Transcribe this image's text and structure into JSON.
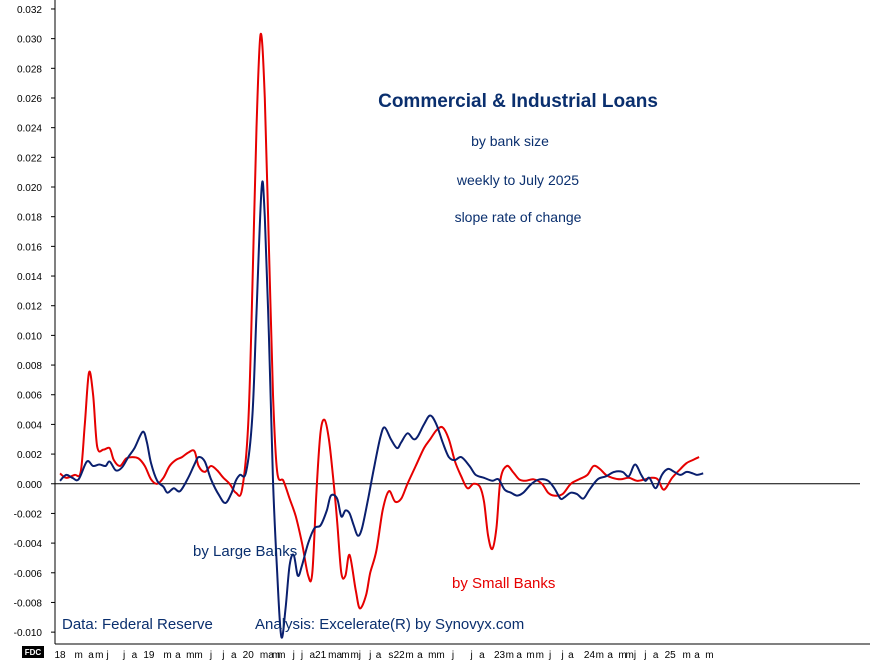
{
  "chart_data": {
    "type": "line",
    "title": "Commercial & Industrial Loans",
    "subtitle_lines": [
      "by bank size",
      "weekly to July 2025",
      "slope rate of change"
    ],
    "annotations": {
      "large_banks": "by Large Banks",
      "small_banks": "by Small Banks",
      "source": "Data:  Federal Reserve",
      "analysis": "Analysis:  Excelerate(R) by Synovyx.com",
      "badge": "FDC"
    },
    "ylim": [
      -0.0108,
      0.0322
    ],
    "y_ticks": [
      0.032,
      0.03,
      0.028,
      0.026,
      0.024,
      0.022,
      0.02,
      0.018,
      0.016,
      0.014,
      0.012,
      0.01,
      0.008,
      0.006,
      0.004,
      0.002,
      0.0,
      -0.002,
      -0.004,
      -0.006,
      -0.008,
      -0.01
    ],
    "y_tick_labels": [
      "0.032",
      "0.030",
      "0.028",
      "0.026",
      "0.024",
      "0.022",
      "0.020",
      "0.018",
      "0.016",
      "0.014",
      "0.012",
      "0.010",
      "0.008",
      "0.006",
      "0.004",
      "0.002",
      "0.000",
      "-0.002",
      "-0.004",
      "-0.006",
      "-0.008",
      "-0.010"
    ],
    "xlim": [
      2018.0,
      2025.62
    ],
    "x_tick_labels": [
      {
        "x": 2018.0,
        "label": "18"
      },
      {
        "x": 2018.18,
        "label": "m"
      },
      {
        "x": 2018.3,
        "label": "a"
      },
      {
        "x": 2018.38,
        "label": "m"
      },
      {
        "x": 2018.46,
        "label": "j"
      },
      {
        "x": 2018.62,
        "label": "j"
      },
      {
        "x": 2018.72,
        "label": "a"
      },
      {
        "x": 2018.86,
        "label": "19"
      },
      {
        "x": 2019.04,
        "label": "m"
      },
      {
        "x": 2019.14,
        "label": "a"
      },
      {
        "x": 2019.26,
        "label": "m"
      },
      {
        "x": 2019.34,
        "label": "m"
      },
      {
        "x": 2019.46,
        "label": "j"
      },
      {
        "x": 2019.58,
        "label": "j"
      },
      {
        "x": 2019.68,
        "label": "a"
      },
      {
        "x": 2019.82,
        "label": "20"
      },
      {
        "x": 2020.0,
        "label": "ma"
      },
      {
        "x": 2020.09,
        "label": "m"
      },
      {
        "x": 2020.14,
        "label": "m"
      },
      {
        "x": 2020.26,
        "label": "j"
      },
      {
        "x": 2020.34,
        "label": "j"
      },
      {
        "x": 2020.44,
        "label": "a"
      },
      {
        "x": 2020.52,
        "label": "21"
      },
      {
        "x": 2020.66,
        "label": "ma"
      },
      {
        "x": 2020.76,
        "label": "m"
      },
      {
        "x": 2020.86,
        "label": "mj"
      },
      {
        "x": 2021.0,
        "label": "j"
      },
      {
        "x": 2021.08,
        "label": "a"
      },
      {
        "x": 2021.2,
        "label": "s"
      },
      {
        "x": 2021.28,
        "label": "22"
      },
      {
        "x": 2021.38,
        "label": "m"
      },
      {
        "x": 2021.48,
        "label": "a"
      },
      {
        "x": 2021.6,
        "label": "m"
      },
      {
        "x": 2021.68,
        "label": "m"
      },
      {
        "x": 2021.8,
        "label": "j"
      },
      {
        "x": 2021.98,
        "label": "j"
      },
      {
        "x": 2022.08,
        "label": "a"
      },
      {
        "x": 2022.25,
        "label": "23"
      },
      {
        "x": 2022.35,
        "label": "m"
      },
      {
        "x": 2022.44,
        "label": "a"
      },
      {
        "x": 2022.55,
        "label": "m"
      },
      {
        "x": 2022.64,
        "label": "m"
      },
      {
        "x": 2022.74,
        "label": "j"
      },
      {
        "x": 2022.86,
        "label": "j"
      },
      {
        "x": 2022.94,
        "label": "a"
      },
      {
        "x": 2023.12,
        "label": "24"
      },
      {
        "x": 2023.22,
        "label": "m"
      },
      {
        "x": 2023.32,
        "label": "a"
      },
      {
        "x": 2023.44,
        "label": "m"
      },
      {
        "x": 2023.52,
        "label": "mj"
      },
      {
        "x": 2023.66,
        "label": "j"
      },
      {
        "x": 2023.76,
        "label": "a"
      },
      {
        "x": 2023.9,
        "label": "25"
      },
      {
        "x": 2024.06,
        "label": "m"
      },
      {
        "x": 2024.16,
        "label": "a"
      },
      {
        "x": 2024.28,
        "label": "m"
      }
    ],
    "series": [
      {
        "name": "by Large Banks",
        "color": "#0a1f6e",
        "points": [
          [
            2018.0,
            0.0002
          ],
          [
            2018.06,
            0.0006
          ],
          [
            2018.12,
            0.0004
          ],
          [
            2018.18,
            0.0003
          ],
          [
            2018.26,
            0.0015
          ],
          [
            2018.32,
            0.0012
          ],
          [
            2018.38,
            0.0013
          ],
          [
            2018.44,
            0.0012
          ],
          [
            2018.48,
            0.0015
          ],
          [
            2018.54,
            0.0009
          ],
          [
            2018.6,
            0.0011
          ],
          [
            2018.66,
            0.0018
          ],
          [
            2018.72,
            0.0024
          ],
          [
            2018.8,
            0.0035
          ],
          [
            2018.84,
            0.0028
          ],
          [
            2018.88,
            0.0014
          ],
          [
            2018.94,
            0.0002
          ],
          [
            2019.0,
            -0.0002
          ],
          [
            2019.04,
            -0.0006
          ],
          [
            2019.1,
            -0.0003
          ],
          [
            2019.16,
            -0.0005
          ],
          [
            2019.24,
            0.0004
          ],
          [
            2019.3,
            0.0013
          ],
          [
            2019.34,
            0.0018
          ],
          [
            2019.4,
            0.0015
          ],
          [
            2019.46,
            0.0003
          ],
          [
            2019.54,
            -0.0008
          ],
          [
            2019.6,
            -0.0013
          ],
          [
            2019.66,
            -0.0006
          ],
          [
            2019.7,
            0.0002
          ],
          [
            2019.74,
            0.0006
          ],
          [
            2019.8,
            0.0008
          ],
          [
            2019.86,
            0.0045
          ],
          [
            2019.9,
            0.0115
          ],
          [
            2019.95,
            0.02
          ],
          [
            2019.98,
            0.018
          ],
          [
            2020.02,
            0.01
          ],
          [
            2020.06,
            0.0002
          ],
          [
            2020.1,
            -0.006
          ],
          [
            2020.14,
            -0.0103
          ],
          [
            2020.18,
            -0.0085
          ],
          [
            2020.22,
            -0.0055
          ],
          [
            2020.26,
            -0.0048
          ],
          [
            2020.3,
            -0.0062
          ],
          [
            2020.34,
            -0.0055
          ],
          [
            2020.4,
            -0.004
          ],
          [
            2020.46,
            -0.003
          ],
          [
            2020.52,
            -0.0028
          ],
          [
            2020.58,
            -0.0018
          ],
          [
            2020.62,
            -0.0008
          ],
          [
            2020.68,
            -0.001
          ],
          [
            2020.72,
            -0.0022
          ],
          [
            2020.76,
            -0.0018
          ],
          [
            2020.8,
            -0.002
          ],
          [
            2020.84,
            -0.0028
          ],
          [
            2020.88,
            -0.0035
          ],
          [
            2020.92,
            -0.003
          ],
          [
            2020.98,
            -0.001
          ],
          [
            2021.04,
            0.0012
          ],
          [
            2021.1,
            0.0032
          ],
          [
            2021.14,
            0.0038
          ],
          [
            2021.2,
            0.003
          ],
          [
            2021.26,
            0.0024
          ],
          [
            2021.3,
            0.0028
          ],
          [
            2021.36,
            0.0034
          ],
          [
            2021.42,
            0.003
          ],
          [
            2021.46,
            0.0032
          ],
          [
            2021.52,
            0.004
          ],
          [
            2021.58,
            0.0046
          ],
          [
            2021.64,
            0.004
          ],
          [
            2021.7,
            0.0028
          ],
          [
            2021.76,
            0.0018
          ],
          [
            2021.82,
            0.0016
          ],
          [
            2021.88,
            0.0018
          ],
          [
            2021.96,
            0.0012
          ],
          [
            2022.02,
            0.0006
          ],
          [
            2022.1,
            0.0004
          ],
          [
            2022.18,
            0.0002
          ],
          [
            2022.24,
            0.0003
          ],
          [
            2022.3,
            -0.0004
          ],
          [
            2022.36,
            -0.0006
          ],
          [
            2022.42,
            -0.0008
          ],
          [
            2022.48,
            -0.0006
          ],
          [
            2022.56,
            0.0
          ],
          [
            2022.64,
            0.0003
          ],
          [
            2022.72,
            0.0002
          ],
          [
            2022.78,
            -0.0003
          ],
          [
            2022.84,
            -0.001
          ],
          [
            2022.88,
            -0.0009
          ],
          [
            2022.94,
            -0.0006
          ],
          [
            2023.0,
            -0.0007
          ],
          [
            2023.06,
            -0.001
          ],
          [
            2023.12,
            -0.0004
          ],
          [
            2023.2,
            0.0003
          ],
          [
            2023.28,
            0.0005
          ],
          [
            2023.36,
            0.0008
          ],
          [
            2023.44,
            0.0008
          ],
          [
            2023.5,
            0.0005
          ],
          [
            2023.56,
            0.0013
          ],
          [
            2023.62,
            0.0006
          ],
          [
            2023.66,
            0.0002
          ],
          [
            2023.7,
            0.0004
          ],
          [
            2023.76,
            -0.0003
          ],
          [
            2023.82,
            0.0006
          ],
          [
            2023.88,
            0.001
          ],
          [
            2023.94,
            0.0008
          ],
          [
            2024.0,
            0.0006
          ],
          [
            2024.06,
            0.0008
          ],
          [
            2024.12,
            0.0007
          ],
          [
            2024.16,
            0.0006
          ],
          [
            2024.22,
            0.0007
          ]
        ]
      },
      {
        "name": "by Small Banks",
        "color": "#e60000",
        "points": [
          [
            2018.0,
            0.0007
          ],
          [
            2018.06,
            0.0004
          ],
          [
            2018.14,
            0.0006
          ],
          [
            2018.2,
            0.0008
          ],
          [
            2018.24,
            0.004
          ],
          [
            2018.28,
            0.0075
          ],
          [
            2018.32,
            0.006
          ],
          [
            2018.36,
            0.0025
          ],
          [
            2018.42,
            0.0023
          ],
          [
            2018.48,
            0.0024
          ],
          [
            2018.52,
            0.0016
          ],
          [
            2018.58,
            0.0012
          ],
          [
            2018.64,
            0.0017
          ],
          [
            2018.7,
            0.0018
          ],
          [
            2018.76,
            0.0017
          ],
          [
            2018.82,
            0.0012
          ],
          [
            2018.88,
            0.0003
          ],
          [
            2018.94,
            0.0
          ],
          [
            2019.0,
            0.0004
          ],
          [
            2019.06,
            0.0012
          ],
          [
            2019.12,
            0.0016
          ],
          [
            2019.18,
            0.0018
          ],
          [
            2019.24,
            0.0021
          ],
          [
            2019.3,
            0.0022
          ],
          [
            2019.34,
            0.0012
          ],
          [
            2019.4,
            0.0008
          ],
          [
            2019.46,
            0.0012
          ],
          [
            2019.52,
            0.0009
          ],
          [
            2019.58,
            0.0004
          ],
          [
            2019.64,
            0.0
          ],
          [
            2019.7,
            -0.0006
          ],
          [
            2019.76,
            -0.0004
          ],
          [
            2019.82,
            0.004
          ],
          [
            2019.86,
            0.013
          ],
          [
            2019.9,
            0.024
          ],
          [
            2019.94,
            0.0303
          ],
          [
            2019.98,
            0.026
          ],
          [
            2020.02,
            0.016
          ],
          [
            2020.06,
            0.006
          ],
          [
            2020.1,
            0.0008
          ],
          [
            2020.16,
            0.0002
          ],
          [
            2020.22,
            -0.001
          ],
          [
            2020.28,
            -0.0022
          ],
          [
            2020.34,
            -0.004
          ],
          [
            2020.4,
            -0.0062
          ],
          [
            2020.44,
            -0.006
          ],
          [
            2020.48,
            -0.0005
          ],
          [
            2020.52,
            0.0035
          ],
          [
            2020.56,
            0.0043
          ],
          [
            2020.6,
            0.003
          ],
          [
            2020.64,
            0.0005
          ],
          [
            2020.68,
            -0.0025
          ],
          [
            2020.72,
            -0.006
          ],
          [
            2020.76,
            -0.0062
          ],
          [
            2020.8,
            -0.0048
          ],
          [
            2020.86,
            -0.0072
          ],
          [
            2020.9,
            -0.0084
          ],
          [
            2020.96,
            -0.0075
          ],
          [
            2021.0,
            -0.006
          ],
          [
            2021.06,
            -0.0045
          ],
          [
            2021.12,
            -0.0018
          ],
          [
            2021.18,
            -0.0005
          ],
          [
            2021.24,
            -0.0012
          ],
          [
            2021.3,
            -0.001
          ],
          [
            2021.36,
            0.0
          ],
          [
            2021.44,
            0.0012
          ],
          [
            2021.52,
            0.0024
          ],
          [
            2021.58,
            0.003
          ],
          [
            2021.64,
            0.0036
          ],
          [
            2021.7,
            0.0038
          ],
          [
            2021.76,
            0.003
          ],
          [
            2021.82,
            0.0015
          ],
          [
            2021.88,
            0.0005
          ],
          [
            2021.94,
            -0.0003
          ],
          [
            2022.0,
            0.0
          ],
          [
            2022.06,
            -0.0002
          ],
          [
            2022.1,
            -0.0012
          ],
          [
            2022.14,
            -0.0035
          ],
          [
            2022.18,
            -0.0044
          ],
          [
            2022.22,
            -0.003
          ],
          [
            2022.26,
            0.0003
          ],
          [
            2022.32,
            0.0012
          ],
          [
            2022.38,
            0.0008
          ],
          [
            2022.44,
            0.0003
          ],
          [
            2022.5,
            0.0002
          ],
          [
            2022.58,
            0.0003
          ],
          [
            2022.66,
            0.0
          ],
          [
            2022.72,
            -0.0006
          ],
          [
            2022.78,
            -0.0008
          ],
          [
            2022.86,
            -0.0007
          ],
          [
            2022.94,
            0.0
          ],
          [
            2023.02,
            0.0003
          ],
          [
            2023.1,
            0.0006
          ],
          [
            2023.16,
            0.0012
          ],
          [
            2023.22,
            0.001
          ],
          [
            2023.28,
            0.0006
          ],
          [
            2023.34,
            0.0004
          ],
          [
            2023.42,
            0.0003
          ],
          [
            2023.5,
            0.0004
          ],
          [
            2023.58,
            0.0002
          ],
          [
            2023.66,
            0.0003
          ],
          [
            2023.72,
            0.0004
          ],
          [
            2023.78,
            0.0003
          ],
          [
            2023.84,
            -0.0004
          ],
          [
            2023.92,
            0.0004
          ],
          [
            2024.0,
            0.001
          ],
          [
            2024.06,
            0.0014
          ],
          [
            2024.12,
            0.0016
          ],
          [
            2024.18,
            0.0018
          ]
        ]
      }
    ]
  }
}
